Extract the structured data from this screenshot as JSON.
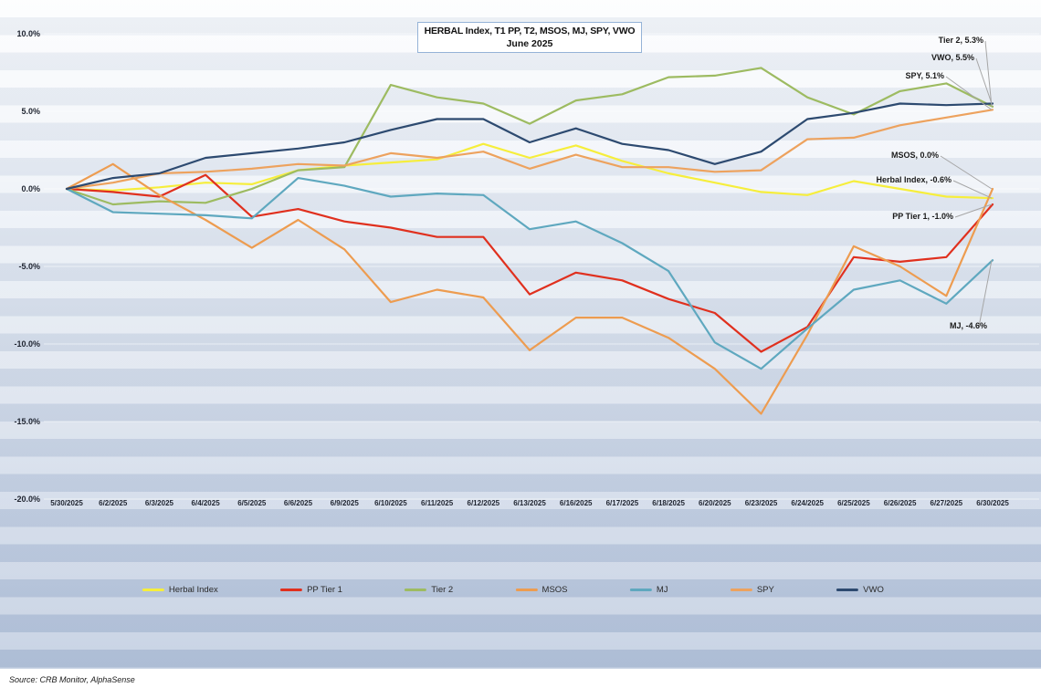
{
  "title_line1": "HERBAL Index, T1 PP, T2, MSOS, MJ, SPY, VWO",
  "title_line2": "June  2025",
  "source": "Source: CRB Monitor, AlphaSense",
  "chart_data": {
    "type": "line",
    "title": "HERBAL Index, T1 PP, T2, MSOS, MJ, SPY, VWO — June 2025",
    "ylabel": "",
    "xlabel": "",
    "ylim": [
      -20,
      10
    ],
    "grid": true,
    "legend_position": "bottom",
    "y_ticks": [
      {
        "label": "10.0%",
        "value": 10
      },
      {
        "label": "5.0%",
        "value": 5
      },
      {
        "label": "0.0%",
        "value": 0
      },
      {
        "label": "-5.0%",
        "value": -5
      },
      {
        "label": "-10.0%",
        "value": -10
      },
      {
        "label": "-15.0%",
        "value": -15
      },
      {
        "label": "-20.0%",
        "value": -20
      }
    ],
    "x_labels": [
      "5/30/2025",
      "6/2/2025",
      "6/3/2025",
      "6/4/2025",
      "6/5/2025",
      "6/6/2025",
      "6/9/2025",
      "6/10/2025",
      "6/11/2025",
      "6/12/2025",
      "6/13/2025",
      "6/16/2025",
      "6/17/2025",
      "6/18/2025",
      "6/20/2025",
      "6/23/2025",
      "6/24/2025",
      "6/25/2025",
      "6/26/2025",
      "6/27/2025",
      "6/30/2025"
    ],
    "series": [
      {
        "name": "Herbal Index",
        "color": "#F6EE3C",
        "values": [
          0,
          -0.1,
          0.1,
          0.4,
          0.3,
          1.2,
          1.5,
          1.7,
          1.9,
          2.9,
          2.0,
          2.8,
          1.8,
          1.0,
          0.4,
          -0.2,
          -0.4,
          0.5,
          0.0,
          -0.5,
          -0.6
        ]
      },
      {
        "name": "PP Tier 1",
        "color": "#E0301E",
        "values": [
          0,
          -0.2,
          -0.5,
          0.9,
          -1.8,
          -1.3,
          -2.1,
          -2.5,
          -3.1,
          -3.1,
          -6.8,
          -5.4,
          -5.9,
          -7.1,
          -8.0,
          -10.5,
          -8.9,
          -4.4,
          -4.7,
          -4.4,
          -1.0
        ]
      },
      {
        "name": "Tier 2",
        "color": "#9DBB61",
        "values": [
          0,
          -1.0,
          -0.8,
          -0.9,
          0.0,
          1.2,
          1.4,
          6.7,
          5.9,
          5.5,
          4.2,
          5.7,
          6.1,
          7.2,
          7.3,
          7.8,
          5.9,
          4.8,
          6.3,
          6.8,
          5.3
        ]
      },
      {
        "name": "MSOS",
        "color": "#ED9C50",
        "values": [
          0,
          1.6,
          -0.4,
          -2.0,
          -3.8,
          -2.0,
          -3.9,
          -7.3,
          -6.5,
          -7.0,
          -10.4,
          -8.3,
          -8.3,
          -9.6,
          -11.6,
          -14.5,
          -9.4,
          -3.7,
          -5.0,
          -6.9,
          0.0
        ]
      },
      {
        "name": "MJ",
        "color": "#5FA8BF",
        "values": [
          0,
          -1.5,
          -1.6,
          -1.7,
          -1.9,
          0.7,
          0.2,
          -0.5,
          -0.3,
          -0.4,
          -2.6,
          -2.1,
          -3.5,
          -5.3,
          -9.9,
          -11.6,
          -9.0,
          -6.5,
          -5.9,
          -7.4,
          -4.6
        ]
      },
      {
        "name": "SPY",
        "color": "#EDA25E",
        "values": [
          0,
          0.4,
          1.0,
          1.1,
          1.3,
          1.6,
          1.5,
          2.3,
          2.0,
          2.4,
          1.3,
          2.2,
          1.4,
          1.4,
          1.1,
          1.2,
          3.2,
          3.3,
          4.1,
          4.6,
          5.1
        ]
      },
      {
        "name": "VWO",
        "color": "#2D4A70",
        "values": [
          0,
          0.7,
          1.0,
          2.0,
          2.3,
          2.6,
          3.0,
          3.8,
          4.5,
          4.5,
          3.0,
          3.9,
          2.9,
          2.5,
          1.6,
          2.4,
          4.5,
          4.9,
          5.5,
          5.4,
          5.5
        ]
      }
    ],
    "annotations": [
      {
        "label": "Tier 2, 5.3%",
        "series": "Tier 2",
        "value": 5.3
      },
      {
        "label": "VWO, 5.5%",
        "series": "VWO",
        "value": 5.5
      },
      {
        "label": "SPY, 5.1%",
        "series": "SPY",
        "value": 5.1
      },
      {
        "label": "MSOS, 0.0%",
        "series": "MSOS",
        "value": 0.0
      },
      {
        "label": "Herbal Index, -0.6%",
        "series": "Herbal Index",
        "value": -0.6
      },
      {
        "label": "PP Tier 1, -1.0%",
        "series": "PP Tier 1",
        "value": -1.0
      },
      {
        "label": "MJ, -4.6%",
        "series": "MJ",
        "value": -4.6
      }
    ]
  }
}
